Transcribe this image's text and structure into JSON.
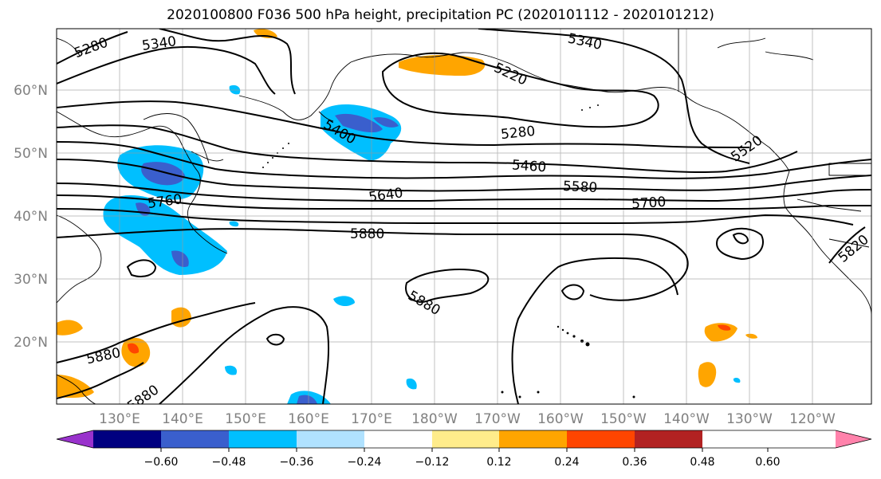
{
  "title": "2020100800 F036 500 hPa height, precipitation PC (2020101112 - 2020101212)",
  "map": {
    "lat_labels": [
      "60°N",
      "50°N",
      "40°N",
      "30°N",
      "20°N"
    ],
    "lon_labels": [
      "130°E",
      "140°E",
      "150°E",
      "160°E",
      "170°E",
      "180°W",
      "170°W",
      "160°W",
      "150°W",
      "140°W",
      "130°W",
      "120°W"
    ],
    "contour_labels": [
      "5280",
      "5340",
      "5340",
      "5220",
      "5400",
      "5280",
      "5460",
      "5520",
      "5580",
      "5640",
      "5700",
      "5760",
      "5880",
      "5880",
      "5820",
      "5880",
      "5880"
    ]
  },
  "colorbar": {
    "ticks": [
      "−0.60",
      "−0.48",
      "−0.36",
      "−0.24",
      "−0.12",
      "0.12",
      "0.24",
      "0.36",
      "0.48",
      "0.60"
    ],
    "colors": [
      "#9932cc",
      "#000080",
      "#3a5fcd",
      "#00bfff",
      "#b0e2ff",
      "#ffffff",
      "#ffec8b",
      "#ffa500",
      "#ff4500",
      "#b22222",
      "#ff82ab"
    ]
  }
}
